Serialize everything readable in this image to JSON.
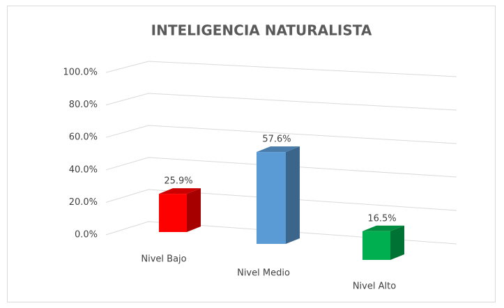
{
  "chart_data": {
    "type": "bar3d",
    "title": "INTELIGENCIA NATURALISTA",
    "categories": [
      "Nivel Bajo",
      "Nivel Medio",
      "Nivel Alto"
    ],
    "values": [
      25.9,
      57.6,
      16.5
    ],
    "value_labels": [
      "25.9%",
      "57.6%",
      "16.5%"
    ],
    "colors": [
      "#ff0000",
      "#5b9bd5",
      "#00b050"
    ],
    "ylim": [
      0,
      100
    ],
    "yticks": [
      {
        "value": 0,
        "label": "0.0%"
      },
      {
        "value": 20,
        "label": "20.0%"
      },
      {
        "value": 40,
        "label": "40.0%"
      },
      {
        "value": 60,
        "label": "60.0%"
      },
      {
        "value": 80,
        "label": "80.0%"
      },
      {
        "value": 100,
        "label": "100.0%"
      }
    ],
    "grid": true
  }
}
